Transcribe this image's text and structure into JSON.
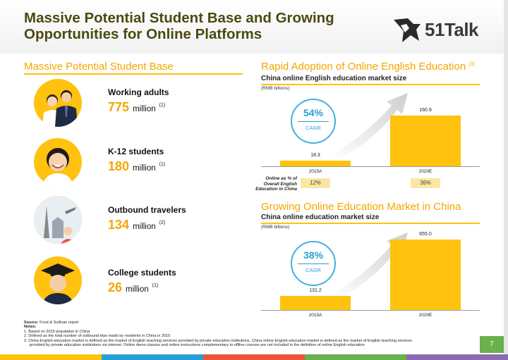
{
  "slide": {
    "title": "Massive Potential Student Base and Growing Opportunities for Online Platforms",
    "logo_text": "51Talk",
    "page_number": "7"
  },
  "left": {
    "heading": "Massive Potential Student Base",
    "groups": [
      {
        "label": "Working adults",
        "value": "775",
        "unit": "million",
        "note": "(1)"
      },
      {
        "label": "K-12 students",
        "value": "180",
        "unit": "million",
        "note": "(1)"
      },
      {
        "label": "Outbound travelers",
        "value": "134",
        "unit": "million",
        "note": "(2)"
      },
      {
        "label": "College students",
        "value": "26",
        "unit": "million",
        "note": "(1)"
      }
    ]
  },
  "chart1": {
    "heading": "Rapid Adoption of Online English Education",
    "heading_note": "(3)",
    "subtitle": "China online English education market size",
    "units": "(RMB billions)",
    "cagr": "54%",
    "cagr_label": "CAGR",
    "online_pct_label_1": "Online as % of",
    "online_pct_label_2": "Overall English",
    "online_pct_label_3": "Education in China",
    "pct_2015": "12%",
    "pct_2020": "36%"
  },
  "chart2": {
    "heading": "Growing Online Education Market in China",
    "subtitle": "China online education market size",
    "units": "(RMB billions)",
    "cagr": "38%",
    "cagr_label": "CAGR"
  },
  "chart_data": [
    {
      "type": "bar",
      "title": "China online English education market size",
      "ylabel": "RMB billions",
      "categories": [
        "2015A",
        "2020E"
      ],
      "values": [
        18.3,
        160.9
      ],
      "value_labels": [
        "18.3",
        "160.9"
      ],
      "ylim": [
        0,
        180
      ]
    },
    {
      "type": "bar",
      "title": "China online education market size",
      "ylabel": "RMB billions",
      "categories": [
        "2015A",
        "2020E"
      ],
      "values": [
        131.2,
        655.0
      ],
      "value_labels": [
        "131.2",
        "655.0"
      ],
      "ylim": [
        0,
        700
      ]
    }
  ],
  "footer": {
    "source_label": "Source",
    "source_text": ": Frost & Sullivan report",
    "notes_label": "Notes",
    "note1": "1. Based on 2015 population in China",
    "note2": "2. Defined as the total number of outbound trips made by residents in China in 2015",
    "note3": "3. China English education market is defined as the market of English teaching services provided by private education institutions. China online English education market is defined as the market of English teaching services",
    "note4": "provided by private education institutions via internet. Online demo classes and online instructions complementary to offline courses are not included in the definition of online English education"
  },
  "colors": {
    "accent": "#f3a700",
    "bar": "#ffc20e",
    "cagr": "#2a9fd6",
    "page_box": "#6ab04c"
  }
}
